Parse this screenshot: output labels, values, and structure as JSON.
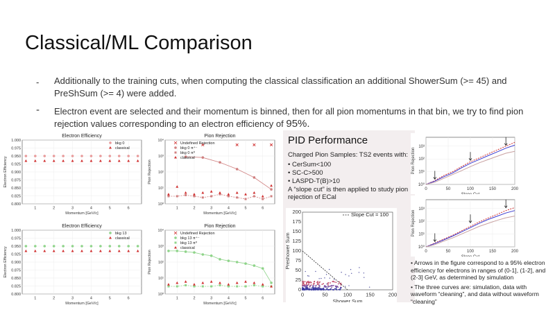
{
  "slide": {
    "title": "Classical/ML Comparison",
    "bullets": [
      {
        "marker": "-",
        "text": "Additionally to the training cuts, when computing the classical classification an additional ShowerSum (>= 45) and PreShSum (>= 4) were added."
      },
      {
        "marker": "-",
        "text": "Electron event are selected and their momentum is binned, then for all pion momentums in that bin, we try to find pion rejection values corresponding to an electron efficiency of",
        "tail": "95%."
      }
    ]
  },
  "pid_panel": {
    "title": "PID Performance",
    "subtitle": "Charged Pion Samples: TS2 events with:",
    "cuts": [
      "• CerSum<100",
      "• SC-C>500",
      "• LASPD-T(B)>10"
    ],
    "note": "A “slope cut” is then applied to study pion rejection of ECal"
  },
  "right_notes": [
    "• Arrows in the figure correspond to a 95% electron efficiency for electrons in ranges of (0-1], (1-2], and (2-3] GeV, as determined by simulation",
    "• The three curves are: simulation, data with waveform “cleaning”, and data without waveform “cleaning”"
  ],
  "colors": {
    "red": "#d03030",
    "green": "#8fd48a",
    "pink": "#e89a9a",
    "blue": "#3a3ad0",
    "pid_bg": "#f3eeef"
  },
  "chart_data": [
    {
      "id": "eff-top",
      "type": "scatter",
      "title": "Electron Efficiency",
      "xlabel": "Momentum [GeV/c]",
      "ylabel": "Electron Efficiency",
      "xlim": [
        0.3,
        6.7
      ],
      "ylim": [
        0.8,
        1.0
      ],
      "xticks": [
        1,
        2,
        3,
        4,
        5,
        6
      ],
      "yticks": [
        0.8,
        0.825,
        0.85,
        0.875,
        0.9,
        0.925,
        0.95,
        0.975,
        1.0
      ],
      "ytick_labels": [
        "0.800",
        "0.825",
        "0.850",
        "0.875",
        "0.900",
        "0.925",
        "0.950",
        "0.975",
        "1.000"
      ],
      "legend": "top-right",
      "series": [
        {
          "name": "bkg 0",
          "marker": "circle",
          "color": "#e89a9a",
          "x": [
            0.5,
            1,
            1.5,
            2,
            2.5,
            3,
            3.5,
            4,
            4.5,
            5,
            5.5,
            6,
            6.5
          ],
          "y": [
            0.95,
            0.95,
            0.95,
            0.95,
            0.95,
            0.95,
            0.95,
            0.95,
            0.95,
            0.95,
            0.95,
            0.95,
            0.95
          ]
        },
        {
          "name": "classical",
          "marker": "triangle",
          "color": "#d03030",
          "x": [
            0.5,
            1,
            1.5,
            2,
            2.5,
            3,
            3.5,
            4,
            4.5,
            5,
            5.5,
            6,
            6.5
          ],
          "y": [
            0.935,
            0.935,
            0.935,
            0.935,
            0.935,
            0.935,
            0.935,
            0.935,
            0.935,
            0.935,
            0.935,
            0.935,
            0.935
          ]
        }
      ]
    },
    {
      "id": "rej-top",
      "type": "scatter",
      "title": "Pion Rejection",
      "xlabel": "Momentum [GeV/c]",
      "ylabel": "Pion Rejection",
      "log_y": true,
      "xlim": [
        0.3,
        6.7
      ],
      "ylim": [
        1,
        10000
      ],
      "xticks": [
        1,
        2,
        3,
        4,
        5,
        6
      ],
      "yticks": [
        1,
        10,
        100,
        1000,
        10000
      ],
      "ytick_labels": [
        "10⁰",
        "10¹",
        "10²",
        "10³",
        "10⁴"
      ],
      "legend": "top-left",
      "series": [
        {
          "name": "Undefined Rejection",
          "marker": "x",
          "color": "#d03030",
          "x": [
            2.5,
            4.5,
            5.5,
            6.5
          ],
          "y": [
            5000,
            5000,
            5000,
            5000
          ]
        },
        {
          "name": "bkg 0 π⁺⁻",
          "marker": "circle-line",
          "color": "#d08080",
          "x": [
            1.5,
            2.5,
            3.5,
            4.5,
            5.5,
            6.5
          ],
          "y": [
            900,
            800,
            400,
            150,
            45,
            8
          ]
        },
        {
          "name": "bkg 0 π⁰",
          "marker": "square-line",
          "color": "#d08080",
          "x": [
            0.5,
            1,
            1.5,
            2,
            2.5,
            3,
            3.5,
            4,
            4.5,
            5,
            5.5,
            6,
            6.5
          ],
          "y": [
            3,
            3,
            3.5,
            3,
            2.5,
            3,
            4,
            3,
            2.5,
            2,
            3,
            2,
            3
          ]
        },
        {
          "name": "classical",
          "marker": "triangle",
          "color": "#d03030",
          "x": [
            0.5,
            1,
            1.5,
            2,
            2.5,
            3,
            3.5,
            4,
            4.5,
            5,
            5.5,
            6,
            6.5
          ],
          "y": [
            4,
            12,
            5,
            4,
            5,
            6,
            5,
            4,
            5,
            4,
            5,
            3,
            14
          ]
        }
      ]
    },
    {
      "id": "eff-bottom",
      "type": "scatter",
      "title": "Electron Efficiency",
      "xlabel": "Momentum [GeV/c]",
      "ylabel": "Electron Efficiency",
      "xlim": [
        0.3,
        6.7
      ],
      "ylim": [
        0.8,
        1.0
      ],
      "xticks": [
        1,
        2,
        3,
        4,
        5,
        6
      ],
      "yticks": [
        0.8,
        0.825,
        0.85,
        0.875,
        0.9,
        0.925,
        0.95,
        0.975,
        1.0
      ],
      "ytick_labels": [
        "0.800",
        "0.825",
        "0.850",
        "0.875",
        "0.900",
        "0.925",
        "0.950",
        "0.975",
        "1.000"
      ],
      "legend": "top-right",
      "series": [
        {
          "name": "bkg 13",
          "marker": "circle",
          "color": "#8fd48a",
          "x": [
            0.5,
            1,
            1.5,
            2,
            2.5,
            3,
            3.5,
            4,
            4.5,
            5,
            5.5,
            6,
            6.5
          ],
          "y": [
            0.95,
            0.95,
            0.95,
            0.95,
            0.95,
            0.95,
            0.95,
            0.95,
            0.95,
            0.95,
            0.95,
            0.95,
            0.95
          ]
        },
        {
          "name": "classical",
          "marker": "triangle",
          "color": "#d03030",
          "x": [
            0.5,
            1,
            1.5,
            2,
            2.5,
            3,
            3.5,
            4,
            4.5,
            5,
            5.5,
            6,
            6.5
          ],
          "y": [
            0.935,
            0.935,
            0.935,
            0.935,
            0.935,
            0.935,
            0.935,
            0.935,
            0.935,
            0.935,
            0.935,
            0.935,
            0.935
          ]
        }
      ]
    },
    {
      "id": "rej-bottom",
      "type": "scatter",
      "title": "Pion Rejection",
      "xlabel": "Momentum [GeV/c]",
      "ylabel": "Pion Rejection",
      "log_y": true,
      "xlim": [
        0.3,
        6.7
      ],
      "ylim": [
        1,
        10000
      ],
      "xticks": [
        1,
        2,
        3,
        4,
        5,
        6
      ],
      "yticks": [
        1,
        10,
        100,
        1000,
        10000
      ],
      "ytick_labels": [
        "10⁰",
        "10¹",
        "10²",
        "10³",
        "10⁴"
      ],
      "legend": "top-left",
      "series": [
        {
          "name": "Undefined Rejection",
          "marker": "x",
          "color": "#d03030",
          "x": [],
          "y": []
        },
        {
          "name": "bkg 13 π⁺⁻",
          "marker": "circle-line",
          "color": "#8fd48a",
          "x": [
            0.5,
            1,
            1.5,
            2,
            2.5,
            3,
            3.5,
            4,
            4.5,
            5,
            5.5,
            6,
            6.5
          ],
          "y": [
            500,
            500,
            450,
            400,
            300,
            250,
            150,
            120,
            100,
            80,
            60,
            40,
            5
          ]
        },
        {
          "name": "bkg 13 π⁰",
          "marker": "square-line",
          "color": "#8fd48a",
          "x": [
            0.5,
            1,
            1.5,
            2,
            2.5,
            3,
            3.5,
            4,
            4.5,
            5,
            5.5,
            6,
            6.5
          ],
          "y": [
            3,
            3,
            3.5,
            3,
            3,
            3,
            3.5,
            3,
            3,
            3,
            3.5,
            3,
            3
          ]
        },
        {
          "name": "classical",
          "marker": "triangle",
          "color": "#d03030",
          "x": [
            0.5,
            1,
            1.5,
            2,
            2.5,
            3,
            3.5,
            4,
            4.5,
            5,
            5.5,
            6,
            6.5
          ],
          "y": [
            4,
            5,
            6,
            4,
            5,
            6,
            5,
            4,
            5,
            6,
            5,
            4,
            3
          ]
        }
      ]
    },
    {
      "id": "pid-scatter",
      "type": "scatter",
      "xlabel": "Shower Sum",
      "ylabel": "Preshower Sum",
      "xlim": [
        0,
        200
      ],
      "ylim": [
        0,
        200
      ],
      "xticks": [
        0,
        50,
        100,
        150,
        200
      ],
      "yticks": [
        0,
        25,
        50,
        75,
        100,
        125,
        150,
        175,
        200
      ],
      "legend": "top-right",
      "series": [
        {
          "name": "Slope Cut = 100",
          "marker": "dashed-line",
          "color": "#222222",
          "x": [
            0,
            100
          ],
          "y": [
            100,
            0
          ]
        }
      ]
    },
    {
      "id": "slope-top",
      "type": "line",
      "xlabel": "Slope Cut",
      "ylabel": "Pion Rejection",
      "log_y": true,
      "xlim": [
        0,
        200
      ],
      "ylim": [
        1,
        5000
      ],
      "xticks": [
        0,
        50,
        100,
        150,
        200
      ],
      "yticks": [
        1,
        10,
        100,
        1000
      ],
      "ytick_labels": [
        "10⁰",
        "10¹",
        "10²",
        "10³"
      ],
      "series": [
        {
          "color": "#d03030",
          "style": "dashed",
          "x": [
            0,
            20,
            40,
            60,
            80,
            100,
            120,
            140,
            160,
            180,
            200
          ],
          "y": [
            1,
            2,
            5,
            10,
            25,
            60,
            120,
            250,
            500,
            1000,
            2000
          ]
        },
        {
          "color": "#3a3ad0",
          "style": "solid",
          "x": [
            0,
            20,
            40,
            60,
            80,
            100,
            120,
            140,
            160,
            180,
            200
          ],
          "y": [
            1,
            1.8,
            4,
            8,
            20,
            45,
            90,
            180,
            350,
            700,
            1200
          ]
        },
        {
          "color": "#c8a0a0",
          "style": "solid",
          "x": [
            0,
            20,
            40,
            60,
            80,
            100,
            120,
            140,
            160,
            180,
            200
          ],
          "y": [
            1,
            1.5,
            3,
            6,
            12,
            25,
            50,
            90,
            160,
            280,
            400
          ]
        }
      ]
    },
    {
      "id": "slope-bottom",
      "type": "line",
      "xlabel": "Slope Cut",
      "ylabel": "Pion Rejection",
      "log_y": true,
      "xlim": [
        0,
        200
      ],
      "ylim": [
        1,
        5000
      ],
      "xticks": [
        0,
        50,
        100,
        150,
        200
      ],
      "yticks": [
        1,
        10,
        100,
        1000
      ],
      "ytick_labels": [
        "10⁰",
        "10¹",
        "10²",
        "10³"
      ],
      "series": [
        {
          "color": "#d03030",
          "style": "dashed",
          "x": [
            0,
            20,
            40,
            60,
            80,
            100,
            120,
            140,
            160,
            180,
            200
          ],
          "y": [
            1,
            2,
            4,
            8,
            18,
            40,
            90,
            180,
            350,
            700,
            1200
          ]
        },
        {
          "color": "#3a3ad0",
          "style": "solid",
          "x": [
            0,
            20,
            40,
            60,
            80,
            100,
            120,
            140,
            160,
            180,
            200
          ],
          "y": [
            1,
            1.8,
            3.5,
            7,
            15,
            32,
            70,
            140,
            250,
            450,
            700
          ]
        },
        {
          "color": "#c8a0a0",
          "style": "solid",
          "x": [
            0,
            20,
            40,
            60,
            80,
            100,
            120,
            140,
            160,
            180,
            200
          ],
          "y": [
            1,
            1.5,
            2.8,
            5,
            10,
            20,
            40,
            70,
            120,
            190,
            260
          ]
        }
      ]
    }
  ]
}
